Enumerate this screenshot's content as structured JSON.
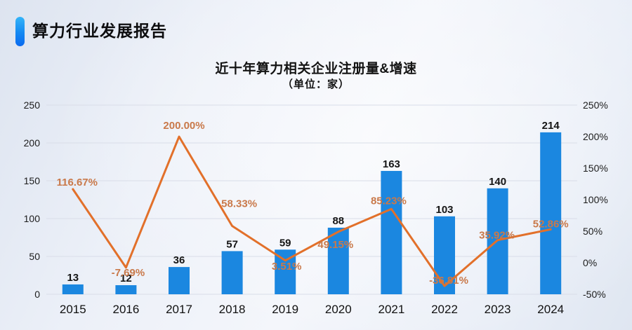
{
  "header": {
    "title": "算力行业发展报告"
  },
  "chart_data": {
    "type": "bar",
    "combo": "bar+line",
    "title": "近十年算力相关企业注册量&增速",
    "subtitle": "（单位：家）",
    "categories": [
      "2015",
      "2016",
      "2017",
      "2018",
      "2019",
      "2020",
      "2021",
      "2022",
      "2023",
      "2024"
    ],
    "series": [
      {
        "name": "注册量",
        "type": "bar",
        "values": [
          13,
          12,
          36,
          57,
          59,
          88,
          163,
          103,
          140,
          214
        ],
        "value_labels": [
          "13",
          "12",
          "36",
          "57",
          "59",
          "88",
          "163",
          "103",
          "140",
          "214"
        ],
        "color": "#1b87e0",
        "label_color": "#151515"
      },
      {
        "name": "增速",
        "type": "line",
        "values": [
          116.67,
          -7.69,
          200.0,
          58.33,
          3.51,
          49.15,
          85.23,
          -36.81,
          35.92,
          52.86
        ],
        "point_labels": [
          "116.67%",
          "-7.69%",
          "200.00%",
          "58.33%",
          "3.51%",
          "49.15%",
          "85.23%",
          "-36.81%",
          "35.92%",
          "52.86%"
        ],
        "color": "#e2702a",
        "label_color": "#c9794a",
        "label_offsets": [
          [
            6,
            -10
          ],
          [
            3,
            7
          ],
          [
            7,
            -16
          ],
          [
            10,
            -32
          ],
          [
            2,
            8
          ],
          [
            -4,
            18
          ],
          [
            -4,
            -12
          ],
          [
            6,
            -8
          ],
          [
            -1,
            -7
          ],
          [
            0,
            -8
          ]
        ]
      }
    ],
    "left_axis": {
      "min": 0,
      "max": 250,
      "tick_values": [
        0,
        50,
        100,
        150,
        200,
        250
      ],
      "tick_labels": [
        "0",
        "50",
        "100",
        "150",
        "200",
        "250"
      ]
    },
    "right_axis": {
      "min": -50,
      "max": 250,
      "tick_values": [
        -50,
        0,
        50,
        100,
        150,
        200,
        250
      ],
      "tick_labels": [
        "-50%",
        "0%",
        "50%",
        "100%",
        "150%",
        "200%",
        "250%"
      ]
    },
    "grid": true,
    "grid_color": "#d9dde8",
    "legend": "none"
  }
}
